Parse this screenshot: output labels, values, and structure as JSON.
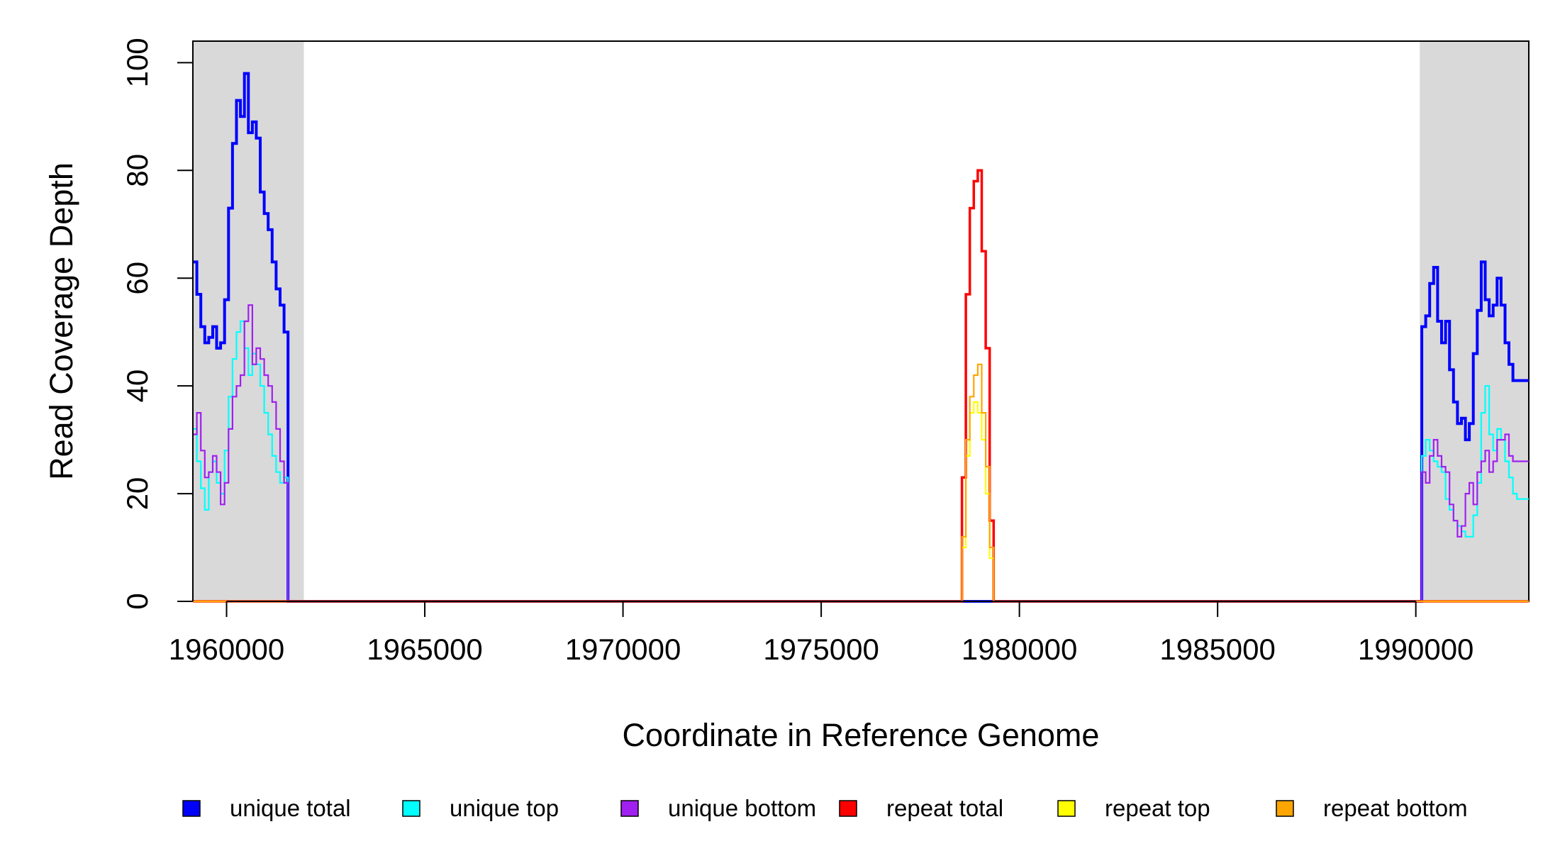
{
  "chart_data": {
    "type": "line",
    "title": "",
    "xlabel": "Coordinate in Reference Genome",
    "ylabel": "Read Coverage Depth",
    "xlim": [
      1959150,
      1992850
    ],
    "ylim": [
      0,
      104
    ],
    "x_ticks": [
      1960000,
      1965000,
      1970000,
      1975000,
      1980000,
      1985000,
      1990000
    ],
    "y_ticks": [
      0,
      20,
      40,
      60,
      80,
      100
    ],
    "grid": false,
    "shaded_regions": [
      {
        "x0": 1959150,
        "x1": 1961950,
        "color": "#d9d9d9"
      },
      {
        "x0": 1990100,
        "x1": 1992850,
        "color": "#d9d9d9"
      }
    ],
    "legend": {
      "placement": "bottom",
      "entries": [
        {
          "label": "unique total",
          "color": "#0000ff"
        },
        {
          "label": "unique top",
          "color": "#00ffff"
        },
        {
          "label": "unique bottom",
          "color": "#a020f0"
        },
        {
          "label": "repeat total",
          "color": "#ff0000"
        },
        {
          "label": "repeat top",
          "color": "#ffff00"
        },
        {
          "label": "repeat bottom",
          "color": "#ffa500"
        }
      ]
    },
    "series": [
      {
        "name": "unique total",
        "color": "#0000ff",
        "x": [
          1959150,
          1959250,
          1959350,
          1959450,
          1959550,
          1959650,
          1959750,
          1959850,
          1959950,
          1960050,
          1960150,
          1960250,
          1960350,
          1960450,
          1960550,
          1960650,
          1960750,
          1960850,
          1960950,
          1961050,
          1961150,
          1961250,
          1961350,
          1961450,
          1961550,
          1961650,
          1961750,
          1961850,
          1961950,
          1962000,
          1978500,
          1978900,
          1990050,
          1990150,
          1990250,
          1990350,
          1990450,
          1990550,
          1990650,
          1990750,
          1990850,
          1990950,
          1991050,
          1991150,
          1991250,
          1991350,
          1991450,
          1991550,
          1991650,
          1991750,
          1991850,
          1991950,
          1992050,
          1992150,
          1992250,
          1992350,
          1992450,
          1992550,
          1992650,
          1992750,
          1992850
        ],
        "y": [
          63,
          57,
          51,
          48,
          49,
          51,
          47,
          48,
          56,
          73,
          85,
          93,
          90,
          98,
          87,
          89,
          86,
          76,
          72,
          69,
          63,
          58,
          55,
          50,
          0,
          0,
          0,
          0,
          0,
          0,
          0,
          0,
          0,
          51,
          53,
          59,
          62,
          52,
          48,
          52,
          43,
          37,
          33,
          34,
          30,
          33,
          46,
          54,
          63,
          56,
          53,
          55,
          60,
          55,
          48,
          44,
          41,
          41,
          41,
          41,
          41
        ]
      },
      {
        "name": "unique top",
        "color": "#00ffff",
        "x": [
          1959150,
          1959250,
          1959350,
          1959450,
          1959550,
          1959650,
          1959750,
          1959850,
          1959950,
          1960050,
          1960150,
          1960250,
          1960350,
          1960450,
          1960550,
          1960650,
          1960750,
          1960850,
          1960950,
          1961050,
          1961150,
          1961250,
          1961350,
          1961450,
          1961550,
          1961650,
          1961750,
          1961850,
          1961950,
          1962000,
          1978500,
          1978900,
          1990050,
          1990150,
          1990250,
          1990350,
          1990450,
          1990550,
          1990650,
          1990750,
          1990850,
          1990950,
          1991050,
          1991150,
          1991250,
          1991350,
          1991450,
          1991550,
          1991650,
          1991750,
          1991850,
          1991950,
          1992050,
          1992150,
          1992250,
          1992350,
          1992450,
          1992550,
          1992650,
          1992750,
          1992850
        ],
        "y": [
          32,
          26,
          21,
          17,
          24,
          26,
          22,
          20,
          28,
          38,
          45,
          50,
          52,
          47,
          42,
          46,
          44,
          40,
          35,
          31,
          27,
          24,
          22,
          23,
          0,
          0,
          0,
          0,
          0,
          0,
          0,
          0,
          0,
          27,
          30,
          28,
          26,
          25,
          24,
          19,
          17,
          15,
          14,
          13,
          12,
          12,
          16,
          22,
          35,
          40,
          31,
          28,
          32,
          30,
          26,
          23,
          20,
          19,
          19,
          19,
          19
        ]
      },
      {
        "name": "unique bottom",
        "color": "#a020f0",
        "x": [
          1959150,
          1959250,
          1959350,
          1959450,
          1959550,
          1959650,
          1959750,
          1959850,
          1959950,
          1960050,
          1960150,
          1960250,
          1960350,
          1960450,
          1960550,
          1960650,
          1960750,
          1960850,
          1960950,
          1961050,
          1961150,
          1961250,
          1961350,
          1961450,
          1961550,
          1961650,
          1961750,
          1961850,
          1961950,
          1962000,
          1978500,
          1978900,
          1990050,
          1990150,
          1990250,
          1990350,
          1990450,
          1990550,
          1990650,
          1990750,
          1990850,
          1990950,
          1991050,
          1991150,
          1991250,
          1991350,
          1991450,
          1991550,
          1991650,
          1991750,
          1991850,
          1991950,
          1992050,
          1992150,
          1992250,
          1992350,
          1992450,
          1992550,
          1992650,
          1992750,
          1992850
        ],
        "y": [
          31,
          35,
          28,
          23,
          24,
          27,
          24,
          18,
          22,
          32,
          38,
          40,
          42,
          52,
          55,
          44,
          47,
          45,
          42,
          40,
          37,
          32,
          26,
          22,
          0,
          0,
          0,
          0,
          0,
          0,
          0,
          0,
          0,
          24,
          22,
          27,
          30,
          27,
          25,
          24,
          18,
          15,
          12,
          14,
          20,
          22,
          18,
          24,
          26,
          28,
          24,
          26,
          30,
          30,
          31,
          27,
          26,
          26,
          26,
          26,
          26
        ]
      },
      {
        "name": "repeat total",
        "color": "#ff0000",
        "x": [
          1959150,
          1978450,
          1978550,
          1978650,
          1978750,
          1978850,
          1978950,
          1979050,
          1979150,
          1979250,
          1979350,
          1992850
        ],
        "y": [
          0,
          0,
          23,
          57,
          73,
          78,
          80,
          65,
          47,
          15,
          0,
          0
        ]
      },
      {
        "name": "repeat top",
        "color": "#ffff00",
        "x": [
          1959150,
          1978450,
          1978550,
          1978650,
          1978750,
          1978850,
          1978950,
          1979050,
          1979150,
          1979250,
          1979350,
          1992850
        ],
        "y": [
          0,
          0,
          10,
          27,
          35,
          37,
          35,
          30,
          20,
          8,
          0,
          0
        ]
      },
      {
        "name": "repeat bottom",
        "color": "#ffa500",
        "x": [
          1959150,
          1978450,
          1978550,
          1978650,
          1978750,
          1978850,
          1978950,
          1979050,
          1979150,
          1979250,
          1979350,
          1992850
        ],
        "y": [
          0,
          0,
          12,
          30,
          38,
          42,
          44,
          35,
          25,
          10,
          0,
          0
        ]
      }
    ]
  }
}
